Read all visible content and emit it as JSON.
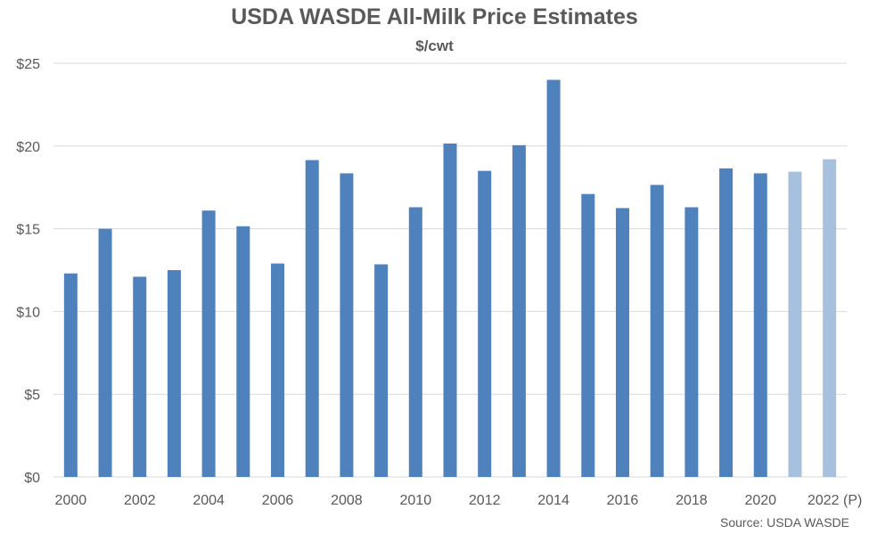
{
  "chart_data": {
    "type": "bar",
    "title": "USDA WASDE All-Milk Price Estimates",
    "subtitle": "$/cwt",
    "source": "Source: USDA WASDE",
    "xlabel": "",
    "ylabel": "",
    "ylim": [
      0,
      25
    ],
    "y_ticks": [
      0,
      5,
      10,
      15,
      20,
      25
    ],
    "y_tick_labels": [
      "$0",
      "$5",
      "$10",
      "$15",
      "$20",
      "$25"
    ],
    "grid": true,
    "categories": [
      "2000",
      "2001",
      "2002",
      "2003",
      "2004",
      "2005",
      "2006",
      "2007",
      "2008",
      "2009",
      "2010",
      "2011",
      "2012",
      "2013",
      "2014",
      "2015",
      "2016",
      "2017",
      "2018",
      "2019",
      "2020",
      "2021",
      "2022"
    ],
    "x_tick_labels": [
      "2000",
      "",
      "2002",
      "",
      "2004",
      "",
      "2006",
      "",
      "2008",
      "",
      "2010",
      "",
      "2012",
      "",
      "2014",
      "",
      "2016",
      "",
      "2018",
      "",
      "2020",
      "",
      "2022 (P)"
    ],
    "values": [
      12.3,
      15.0,
      12.1,
      12.5,
      16.1,
      15.15,
      12.9,
      19.15,
      18.35,
      12.85,
      16.3,
      20.15,
      18.5,
      20.05,
      24.0,
      17.1,
      16.25,
      17.65,
      16.3,
      18.65,
      18.35,
      18.45,
      19.2
    ],
    "colors": {
      "actual": "#4f81bd",
      "projected": "#a7c0de",
      "grid": "#d9d9d9",
      "text": "#595959"
    },
    "projected_categories": [
      "2021",
      "2022"
    ]
  }
}
